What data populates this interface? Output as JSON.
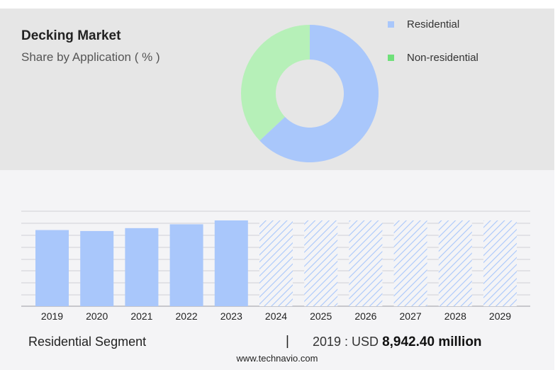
{
  "header": {
    "title": "Decking Market",
    "subtitle": "Share by Application ( % )"
  },
  "chart_data": [
    {
      "type": "pie",
      "title": "Decking Market",
      "subtitle": "Share by Application ( % )",
      "categories": [
        "Residential",
        "Non-residential"
      ],
      "values": [
        63,
        37
      ],
      "colors": [
        "#a9c7fb",
        "#b6f0b8"
      ],
      "donut": true,
      "legend_position": "right"
    },
    {
      "type": "bar",
      "categories": [
        "2019",
        "2020",
        "2021",
        "2022",
        "2023",
        "2024",
        "2025",
        "2026",
        "2027",
        "2028",
        "2029"
      ],
      "values": [
        0.79,
        0.78,
        0.81,
        0.85,
        0.89,
        0.89,
        0.89,
        0.89,
        0.89,
        0.89,
        0.89
      ],
      "forecast_from": "2024",
      "bar_color": "#a9c7fb",
      "forecast_pattern": "diagonal-hatch",
      "grid": true
    }
  ],
  "footer": {
    "segment_label": "Residential Segment",
    "separator": "|",
    "value_prefix": "2019 : USD",
    "value": "8,942.40 million",
    "source": "www.technavio.com"
  }
}
